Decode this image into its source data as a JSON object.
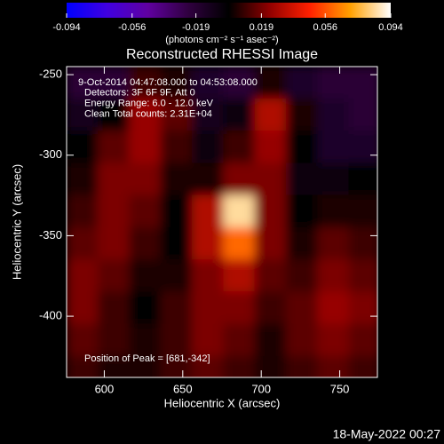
{
  "chart_data": {
    "type": "heatmap",
    "title": "Reconstructed RHESSI Image",
    "x_label": "Heliocentric X (arcsec)",
    "y_label": "Heliocentric Y (arcsec)",
    "colorbar_label": "(photons cm⁻² s⁻¹ asec⁻²)",
    "annotations": [
      "9-Oct-2014 04:47:08.000 to 04:53:08.000",
      "Detectors: 3F 6F 9F, Att 0",
      "Energy Range: 6.0 - 12.0 keV",
      "Clean    Total counts: 2.31E+04"
    ],
    "peak_label": "Position of Peak = [681,-342]",
    "timestamp": "18-May-2022 00:27",
    "x": [
      586,
      606,
      626,
      646,
      666,
      686,
      706,
      726,
      746,
      766
    ],
    "y": [
      -255,
      -275,
      -295,
      -315,
      -335,
      -355,
      -375,
      -395,
      -415,
      -435
    ],
    "z": [
      [
        -0.02,
        -0.02,
        0.01,
        0.005,
        -0.015,
        -0.02,
        0.005,
        -0.015,
        -0.02,
        -0.02
      ],
      [
        -0.01,
        0.0,
        0.025,
        0.015,
        -0.01,
        -0.005,
        0.03,
        0.005,
        -0.015,
        -0.02
      ],
      [
        0.0,
        0.015,
        0.025,
        0.01,
        -0.005,
        0.01,
        0.025,
        0.0,
        -0.015,
        -0.015
      ],
      [
        0.005,
        0.02,
        0.02,
        0.005,
        0.005,
        0.02,
        0.02,
        -0.005,
        -0.005,
        0.0
      ],
      [
        0.01,
        0.02,
        0.015,
        0.0,
        0.03,
        0.085,
        0.02,
        0.0,
        0.005,
        0.005
      ],
      [
        0.015,
        0.02,
        0.01,
        0.0,
        0.03,
        0.06,
        0.02,
        0.005,
        0.015,
        0.01
      ],
      [
        0.02,
        0.015,
        0.005,
        0.005,
        0.02,
        0.03,
        0.015,
        0.01,
        0.02,
        0.015
      ],
      [
        0.02,
        0.01,
        0.0,
        0.01,
        0.02,
        0.02,
        0.01,
        0.015,
        0.025,
        0.02
      ],
      [
        0.015,
        0.01,
        0.005,
        0.01,
        0.02,
        0.015,
        0.005,
        0.015,
        0.02,
        0.015
      ],
      [
        0.01,
        0.005,
        0.005,
        0.01,
        0.015,
        0.01,
        0.005,
        0.01,
        0.015,
        0.01
      ]
    ],
    "xlim": [
      576,
      774
    ],
    "ylim": [
      -438,
      -245
    ],
    "xticks": [
      600,
      650,
      700,
      750
    ],
    "yticks": [
      -250,
      -300,
      -350,
      -400
    ],
    "zlim": [
      -0.094,
      0.094
    ],
    "zticks": [
      -0.094,
      -0.056,
      -0.019,
      0.019,
      0.056,
      0.094
    ],
    "colors": [
      "#0000ff",
      "#4000e0",
      "#6000a0",
      "#300040",
      "#000000",
      "#900000",
      "#ff2000",
      "#ffa000",
      "#ffffff"
    ]
  }
}
